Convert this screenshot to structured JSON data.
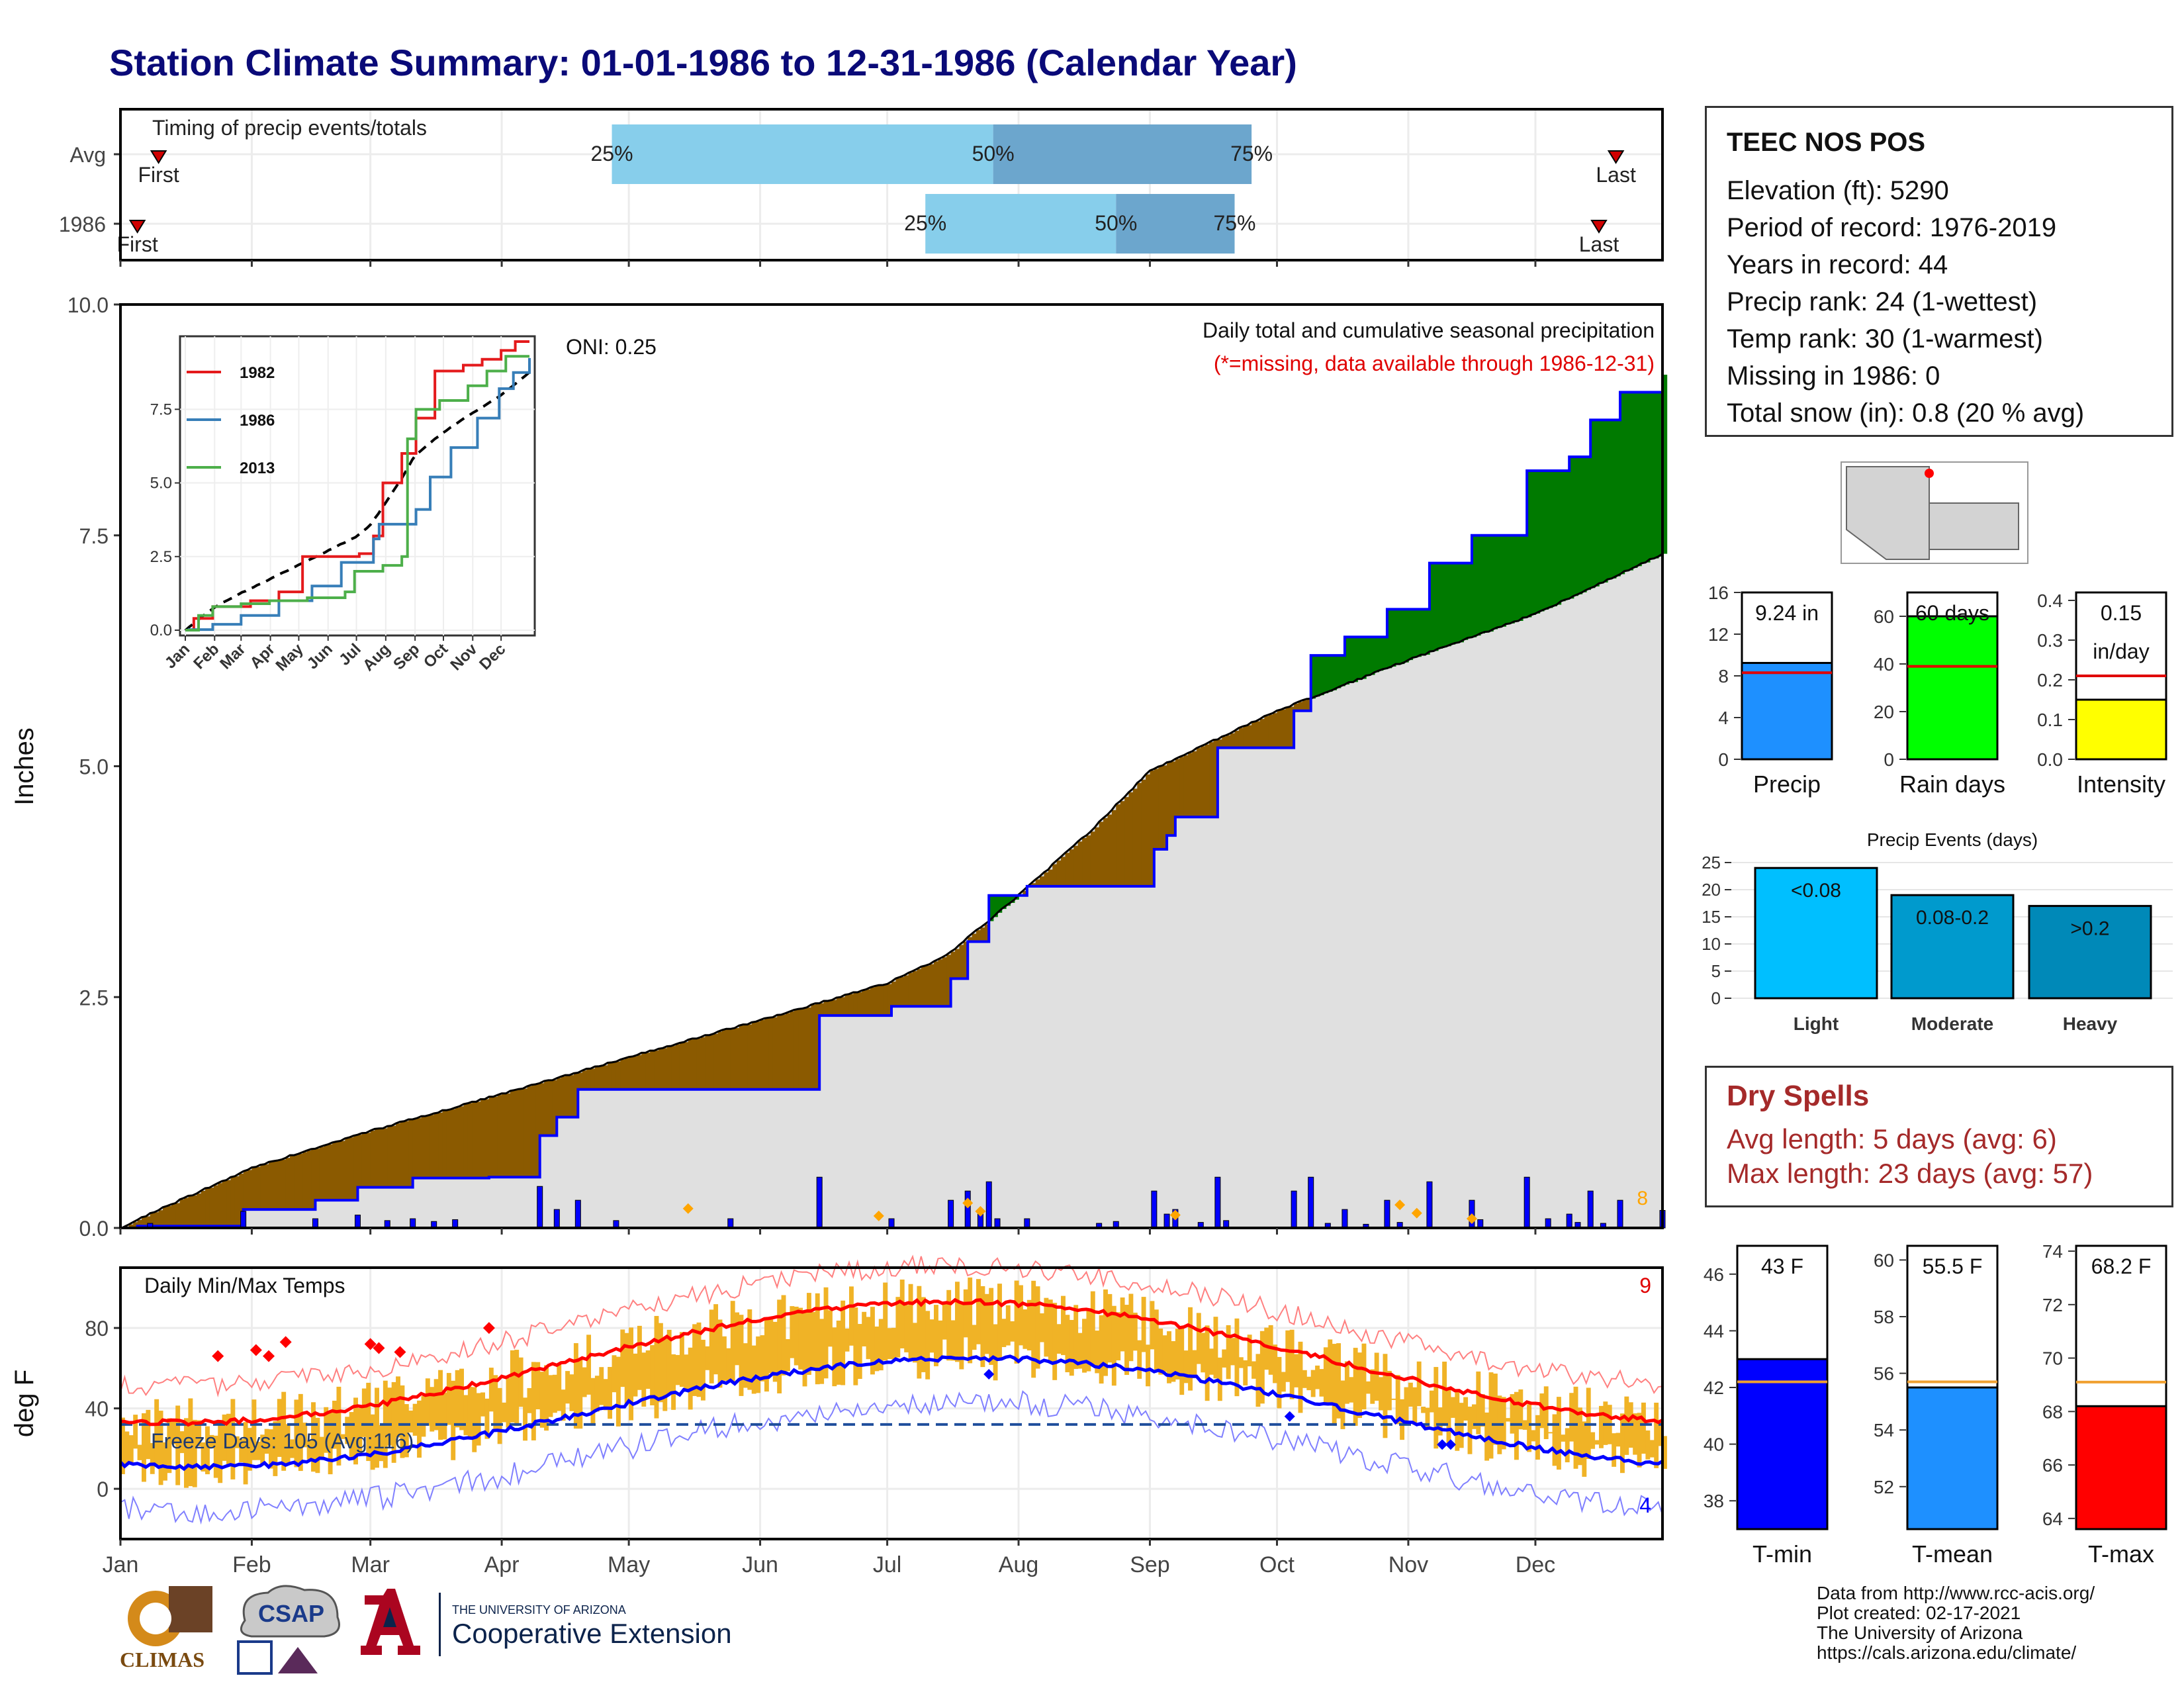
{
  "title": "Station Climate Summary: 01-01-1986 to 12-31-1986 (Calendar Year)",
  "timing_panel": {
    "label": "Timing of precip events/totals",
    "rows": [
      {
        "name": "Avg",
        "first_doy": 10,
        "p25_doy": 117,
        "p50_doy": 207,
        "p75_doy": 268,
        "last_doy": 354
      },
      {
        "name": "1986",
        "first_doy": 5,
        "p25_doy": 191,
        "p50_doy": 236,
        "p75_doy": 264,
        "last_doy": 350
      }
    ],
    "first_label": "First",
    "last_label": "Last",
    "pct_labels": [
      "25%",
      "50%",
      "75%"
    ]
  },
  "precip_panel": {
    "ylabel": "Inches",
    "yticks": [
      "0.0",
      "2.5",
      "5.0",
      "7.5",
      "10.0"
    ],
    "ylim": [
      0,
      10
    ],
    "annotation_title": "Daily total and cumulative seasonal precipitation",
    "annotation_missing": "(*=missing, data available through 1986-12-31)",
    "oni": "ONI: 0.25",
    "event_count": "8",
    "colors": {
      "above": "#007a00",
      "below": "#8b5a00",
      "avg_fill": "#e0e0e0",
      "obs_line": "#0000ff"
    }
  },
  "temp_panel": {
    "ylabel": "deg F",
    "label": "Daily Min/Max Temps",
    "yticks": [
      "0",
      "40",
      "80"
    ],
    "ylim": [
      -25,
      110
    ],
    "freeze_text": "Freeze Days: 105 (Avg:116)",
    "freeze_line": 32,
    "count_max": "9",
    "count_min": "4"
  },
  "months": [
    "Jan",
    "Feb",
    "Mar",
    "Apr",
    "May",
    "Jun",
    "Jul",
    "Aug",
    "Sep",
    "Oct",
    "Nov",
    "Dec"
  ],
  "inset": {
    "legend": [
      "1982",
      "1986",
      "2013"
    ],
    "legend_colors": [
      "#e41a1c",
      "#377eb8",
      "#4daf4a"
    ],
    "yticks": [
      "0.0",
      "2.5",
      "5.0",
      "7.5"
    ],
    "months": [
      "Jan",
      "Feb",
      "Mar",
      "Apr",
      "May",
      "Jun",
      "Jul",
      "Aug",
      "Sep",
      "Oct",
      "Nov",
      "Dec"
    ]
  },
  "station": {
    "name": "TEEC NOS POS",
    "lines": [
      "Elevation (ft): 5290",
      "Period of record: 1976-2019",
      "Years in record: 44",
      "Precip rank: 24 (1-wettest)",
      "Temp rank: 30 (1-warmest)",
      "Missing in 1986: 0",
      "Total snow (in): 0.8 (20 % avg)"
    ]
  },
  "summary_bars": [
    {
      "label": "Precip",
      "value": 9.24,
      "avg": 8.3,
      "ylim": [
        0,
        16
      ],
      "yticks": [
        "0",
        "4",
        "8",
        "12",
        "16"
      ],
      "value_text": "9.24 in",
      "value_text2": "",
      "color": "#1e90ff"
    },
    {
      "label": "Rain days",
      "value": 60,
      "avg": 39,
      "ylim": [
        0,
        70
      ],
      "yticks": [
        "0",
        "20",
        "40",
        "60"
      ],
      "value_text": "60 days",
      "value_text2": "",
      "color": "#00ff00"
    },
    {
      "label": "Intensity",
      "value": 0.15,
      "avg": 0.21,
      "ylim": [
        0,
        0.42
      ],
      "yticks": [
        "0.0",
        "0.1",
        "0.2",
        "0.3",
        "0.4"
      ],
      "value_text": "0.15",
      "value_text2": "in/day",
      "color": "#ffff00"
    }
  ],
  "precip_events": {
    "title": "Precip Events (days)",
    "ylim": [
      0,
      25
    ],
    "yticks": [
      "0",
      "5",
      "10",
      "15",
      "20",
      "25"
    ],
    "categories": [
      "Light",
      "Moderate",
      "Heavy"
    ],
    "values": [
      24,
      19,
      17
    ],
    "bar_labels": [
      "<0.08",
      "0.08-0.2",
      ">0.2"
    ],
    "colors": [
      "#00bfff",
      "#009acd",
      "#0089b8"
    ]
  },
  "dry_spells": {
    "title": "Dry Spells",
    "lines": [
      "Avg length: 5 days (avg: 6)",
      "Max length: 23 days (avg: 57)"
    ]
  },
  "temp_bars": [
    {
      "label": "T-min",
      "value": 43.0,
      "avg": 42.2,
      "ylim": [
        37,
        47
      ],
      "yticks": [
        "38",
        "40",
        "42",
        "44",
        "46"
      ],
      "value_text": "43 F",
      "color": "#0000ff"
    },
    {
      "label": "T-mean",
      "value": 55.5,
      "avg": 55.7,
      "ylim": [
        50.5,
        60.5
      ],
      "yticks": [
        "52",
        "54",
        "56",
        "58",
        "60"
      ],
      "value_text": "55.5 F",
      "color": "#1e90ff"
    },
    {
      "label": "T-max",
      "value": 68.2,
      "avg": 69.1,
      "ylim": [
        63.6,
        74.2
      ],
      "yticks": [
        "64",
        "66",
        "68",
        "70",
        "72",
        "74"
      ],
      "value_text": "68.2 F",
      "color": "#ff0000"
    }
  ],
  "credits": [
    "Data from http://www.rcc-acis.org/",
    "Plot created: 02-17-2021",
    "The University of Arizona",
    "https://cals.arizona.edu/climate/"
  ],
  "logos": {
    "climas": "CLIMAS",
    "csap": "CSAP",
    "ua_small": "THE UNIVERSITY OF ARIZONA",
    "ua_big": "Cooperative Extension"
  }
}
